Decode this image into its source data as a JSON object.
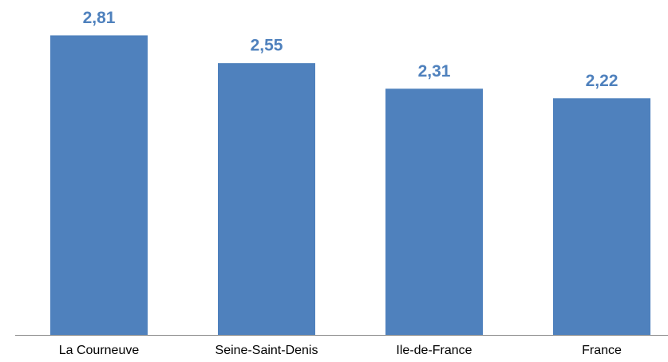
{
  "chart_data": {
    "type": "bar",
    "categories": [
      "La Courneuve",
      "Seine-Saint-Denis",
      "Ile-de-France",
      "France"
    ],
    "values": [
      2.81,
      2.55,
      2.31,
      2.22
    ],
    "value_labels": [
      "2,81",
      "2,55",
      "2,31",
      "2,22"
    ],
    "color": "#4f81bd",
    "ylim": [
      0,
      3
    ]
  }
}
